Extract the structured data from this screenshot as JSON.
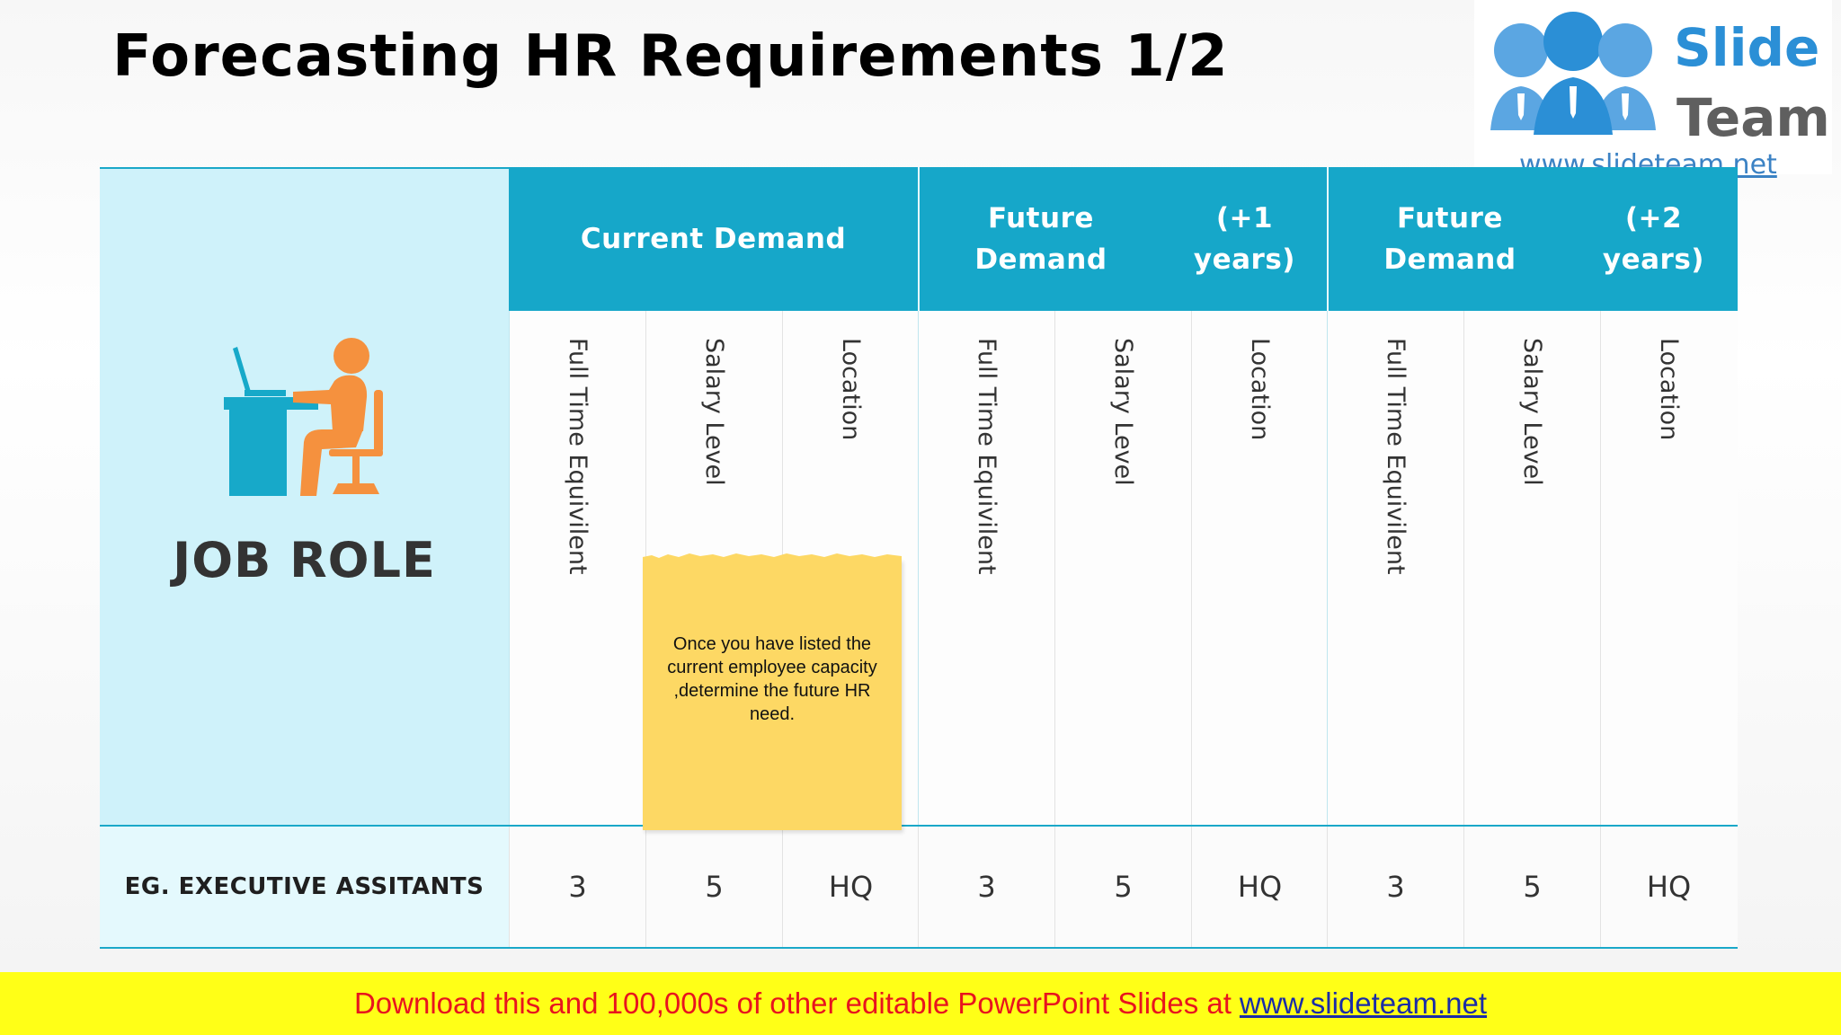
{
  "slide": {
    "title": "Forecasting HR Requirements 1/2"
  },
  "logo": {
    "word1": "Slide",
    "word2": "Team",
    "url": "www.slideteam.net",
    "colors": {
      "primary": "#2b8fd6",
      "secondary": "#5f5f5f"
    }
  },
  "table": {
    "job_role_label": "JOB ROLE",
    "job_role_icon": "person-at-desk-icon",
    "groups": [
      {
        "title": "Current Demand"
      },
      {
        "title": "Future Demand (+1 years)"
      },
      {
        "title": "Future Demand (+2 years)"
      }
    ],
    "sub_columns": [
      "Full Time Equivilent",
      "Salary Level",
      "Location",
      "Full Time Equivilent",
      "Salary Level",
      "Location",
      "Full Time Equivilent",
      "Salary Level",
      "Location"
    ],
    "rows": [
      {
        "label": "EG. EXECUTIVE ASSITANTS",
        "values": [
          "3",
          "5",
          "HQ",
          "3",
          "5",
          "HQ",
          "3",
          "5",
          "HQ"
        ]
      }
    ]
  },
  "sticky_note": {
    "text": "Once you have listed the current employee capacity ,determine the future HR need."
  },
  "footer": {
    "text": "Download this and 100,000s of other editable PowerPoint Slides at",
    "link": "www.slideteam.net"
  },
  "colors": {
    "header_band": "#16a7c9",
    "job_role_panel": "#cff2fa",
    "icon_desk": "#17a9c9",
    "icon_person": "#f5913e",
    "sticky_note": "#fdd864",
    "footer_bg": "#ffff17",
    "footer_text": "#e8141e",
    "footer_link": "#1a2ca8"
  }
}
